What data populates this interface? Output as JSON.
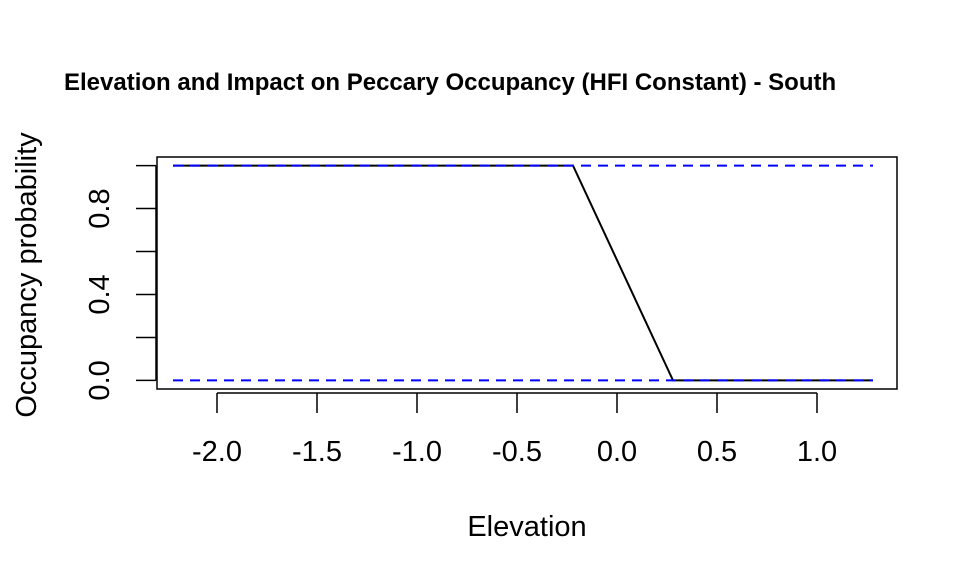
{
  "chart_data": {
    "type": "line",
    "title": "Elevation and Impact on Peccary Occupancy (HFI Constant) - South",
    "xlabel": "Elevation",
    "ylabel": "Occupancy probability",
    "xlim": [
      -2.3,
      1.4
    ],
    "ylim": [
      -0.04,
      1.04
    ],
    "x_ticks": [
      "-2.0",
      "-1.5",
      "-1.0",
      "-0.5",
      "0.0",
      "0.5",
      "1.0"
    ],
    "y_ticks": [
      "0.0",
      "0.4",
      "0.8"
    ],
    "y_ticks_unlabeled": [
      0.2,
      0.6,
      1.0
    ],
    "grid": false,
    "series": [
      {
        "role": "estimate",
        "color": "#000000",
        "line_style": "solid",
        "x": [
          -2.22,
          -0.22,
          0.28,
          1.28
        ],
        "y": [
          1.0,
          1.0,
          0.0,
          0.0
        ]
      },
      {
        "role": "upper bound",
        "color": "#0000ff",
        "line_style": "dashed",
        "x": [
          -2.22,
          1.28
        ],
        "y": [
          1.0,
          1.0
        ]
      },
      {
        "role": "lower bound",
        "color": "#0000ff",
        "line_style": "dashed",
        "x": [
          -2.22,
          1.28
        ],
        "y": [
          0.0,
          0.0
        ]
      }
    ]
  }
}
